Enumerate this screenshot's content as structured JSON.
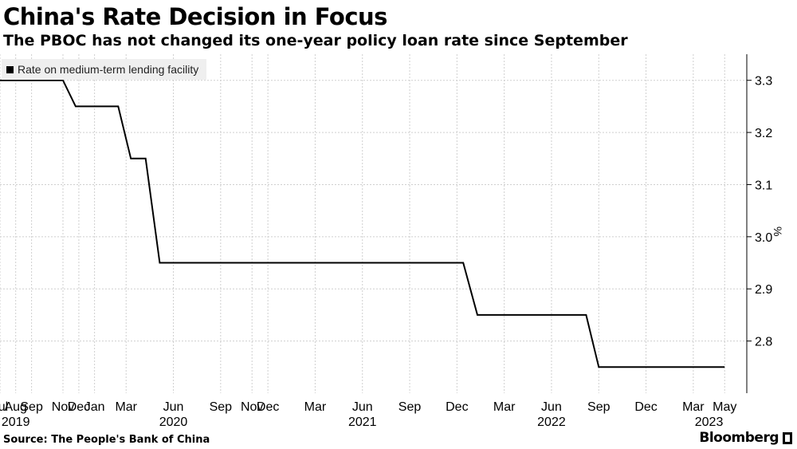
{
  "chart_data": {
    "type": "line",
    "title": "China's Rate Decision in Focus",
    "subtitle": "The PBOC has not changed its one-year policy loan rate since September",
    "ylabel": "%",
    "ylim": [
      2.7,
      3.35
    ],
    "yticks": [
      2.8,
      2.9,
      3.0,
      3.1,
      3.2,
      3.3
    ],
    "ytick_labels": [
      "2.8",
      "2.9",
      "3.0",
      "3.1",
      "3.2",
      "3.3"
    ],
    "xlim": [
      2019.5,
      2023.45
    ],
    "xticks": [
      {
        "label": "Jul",
        "x": 2019.5
      },
      {
        "label": "Aug",
        "x": 2019.583
      },
      {
        "label": "Sep",
        "x": 2019.667
      },
      {
        "label": "Nov",
        "x": 2019.833
      },
      {
        "label": "Dec",
        "x": 2019.917
      },
      {
        "label": "Jan",
        "x": 2020.0
      },
      {
        "label": "Mar",
        "x": 2020.167
      },
      {
        "label": "Jun",
        "x": 2020.417
      },
      {
        "label": "Sep",
        "x": 2020.667
      },
      {
        "label": "Nov",
        "x": 2020.833
      },
      {
        "label": "Dec",
        "x": 2020.917
      },
      {
        "label": "Mar",
        "x": 2021.167
      },
      {
        "label": "Jun",
        "x": 2021.417
      },
      {
        "label": "Sep",
        "x": 2021.667
      },
      {
        "label": "Dec",
        "x": 2021.917
      },
      {
        "label": "Mar",
        "x": 2022.167
      },
      {
        "label": "Jun",
        "x": 2022.417
      },
      {
        "label": "Sep",
        "x": 2022.667
      },
      {
        "label": "Dec",
        "x": 2022.917
      },
      {
        "label": "Mar",
        "x": 2023.167
      },
      {
        "label": "May",
        "x": 2023.333
      }
    ],
    "year_labels": [
      {
        "label": "2019",
        "x": 2019.583
      },
      {
        "label": "2020",
        "x": 2020.417
      },
      {
        "label": "2021",
        "x": 2021.417
      },
      {
        "label": "2022",
        "x": 2022.417
      },
      {
        "label": "2023",
        "x": 2023.25
      }
    ],
    "grid": true,
    "legend": {
      "position": "top-left",
      "entries": [
        "Rate on medium-term lending facility"
      ]
    },
    "series": [
      {
        "name": "Rate on medium-term lending facility",
        "color": "#000000",
        "points": [
          {
            "x": 2019.5,
            "y": 3.3
          },
          {
            "x": 2019.833,
            "y": 3.3
          },
          {
            "x": 2019.9,
            "y": 3.25
          },
          {
            "x": 2020.125,
            "y": 3.25
          },
          {
            "x": 2020.192,
            "y": 3.15
          },
          {
            "x": 2020.27,
            "y": 3.15
          },
          {
            "x": 2020.345,
            "y": 2.95
          },
          {
            "x": 2021.95,
            "y": 2.95
          },
          {
            "x": 2022.025,
            "y": 2.85
          },
          {
            "x": 2022.6,
            "y": 2.85
          },
          {
            "x": 2022.667,
            "y": 2.75
          },
          {
            "x": 2023.333,
            "y": 2.75
          }
        ]
      }
    ]
  },
  "footer": {
    "source": "Source: The People's Bank of China",
    "brand": "Bloomberg"
  }
}
